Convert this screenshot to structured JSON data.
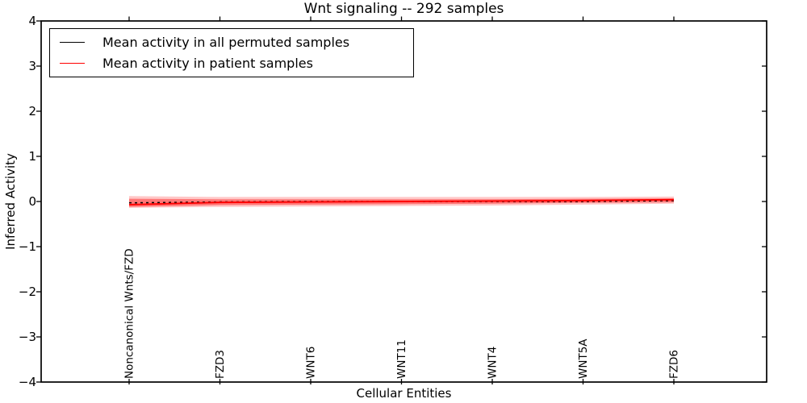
{
  "figure": {
    "title": "Wnt signaling -- 292 samples",
    "xlabel": "Cellular Entities",
    "ylabel": "Inferred Activity"
  },
  "legend": {
    "position": "upper left",
    "items": [
      {
        "label": "Mean activity in all permuted samples",
        "color": "#000000",
        "style": "solid"
      },
      {
        "label": "Mean activity in patient samples",
        "color": "#ff0000",
        "style": "solid"
      }
    ]
  },
  "chart_data": {
    "type": "line",
    "title": "Wnt signaling -- 292 samples",
    "xlabel": "Cellular Entities",
    "ylabel": "Inferred Activity",
    "ylim": [
      -4,
      4
    ],
    "yticks": [
      4,
      3,
      2,
      1,
      0,
      -1,
      -2,
      -3,
      -4
    ],
    "ytick_labels": [
      "4",
      "3",
      "2",
      "1",
      "0",
      "−1",
      "−2",
      "−3",
      "−4"
    ],
    "categories": [
      "Noncanonical Wnts/FZD",
      "FZD3",
      "WNT6",
      "WNT11",
      "WNT4",
      "WNT5A",
      "FZD6"
    ],
    "series": [
      {
        "name": "Mean activity in all permuted samples",
        "color": "#000000",
        "style": "dashed",
        "values": [
          -0.03,
          -0.01,
          0.0,
          0.0,
          0.0,
          0.0,
          0.02
        ]
      },
      {
        "name": "Mean activity in patient samples",
        "color": "#ff0000",
        "style": "solid",
        "values": [
          -0.07,
          -0.02,
          -0.01,
          0.0,
          0.01,
          0.02,
          0.04
        ]
      }
    ],
    "band": {
      "name": "patient-sample-spread",
      "color": "#ff0000",
      "outer_upper": [
        0.12,
        0.1,
        0.1,
        0.1,
        0.1,
        0.1,
        0.11
      ],
      "outer_lower": [
        -0.14,
        -0.12,
        -0.11,
        -0.1,
        -0.09,
        -0.07,
        -0.05
      ],
      "inner_upper": [
        0.06,
        0.05,
        0.05,
        0.05,
        0.05,
        0.06,
        0.07
      ],
      "inner_lower": [
        -0.12,
        -0.08,
        -0.07,
        -0.06,
        -0.05,
        -0.03,
        -0.02
      ]
    },
    "grid": false,
    "background": "#ffffff",
    "axis_color": "#000000",
    "legend_position": "upper left"
  }
}
